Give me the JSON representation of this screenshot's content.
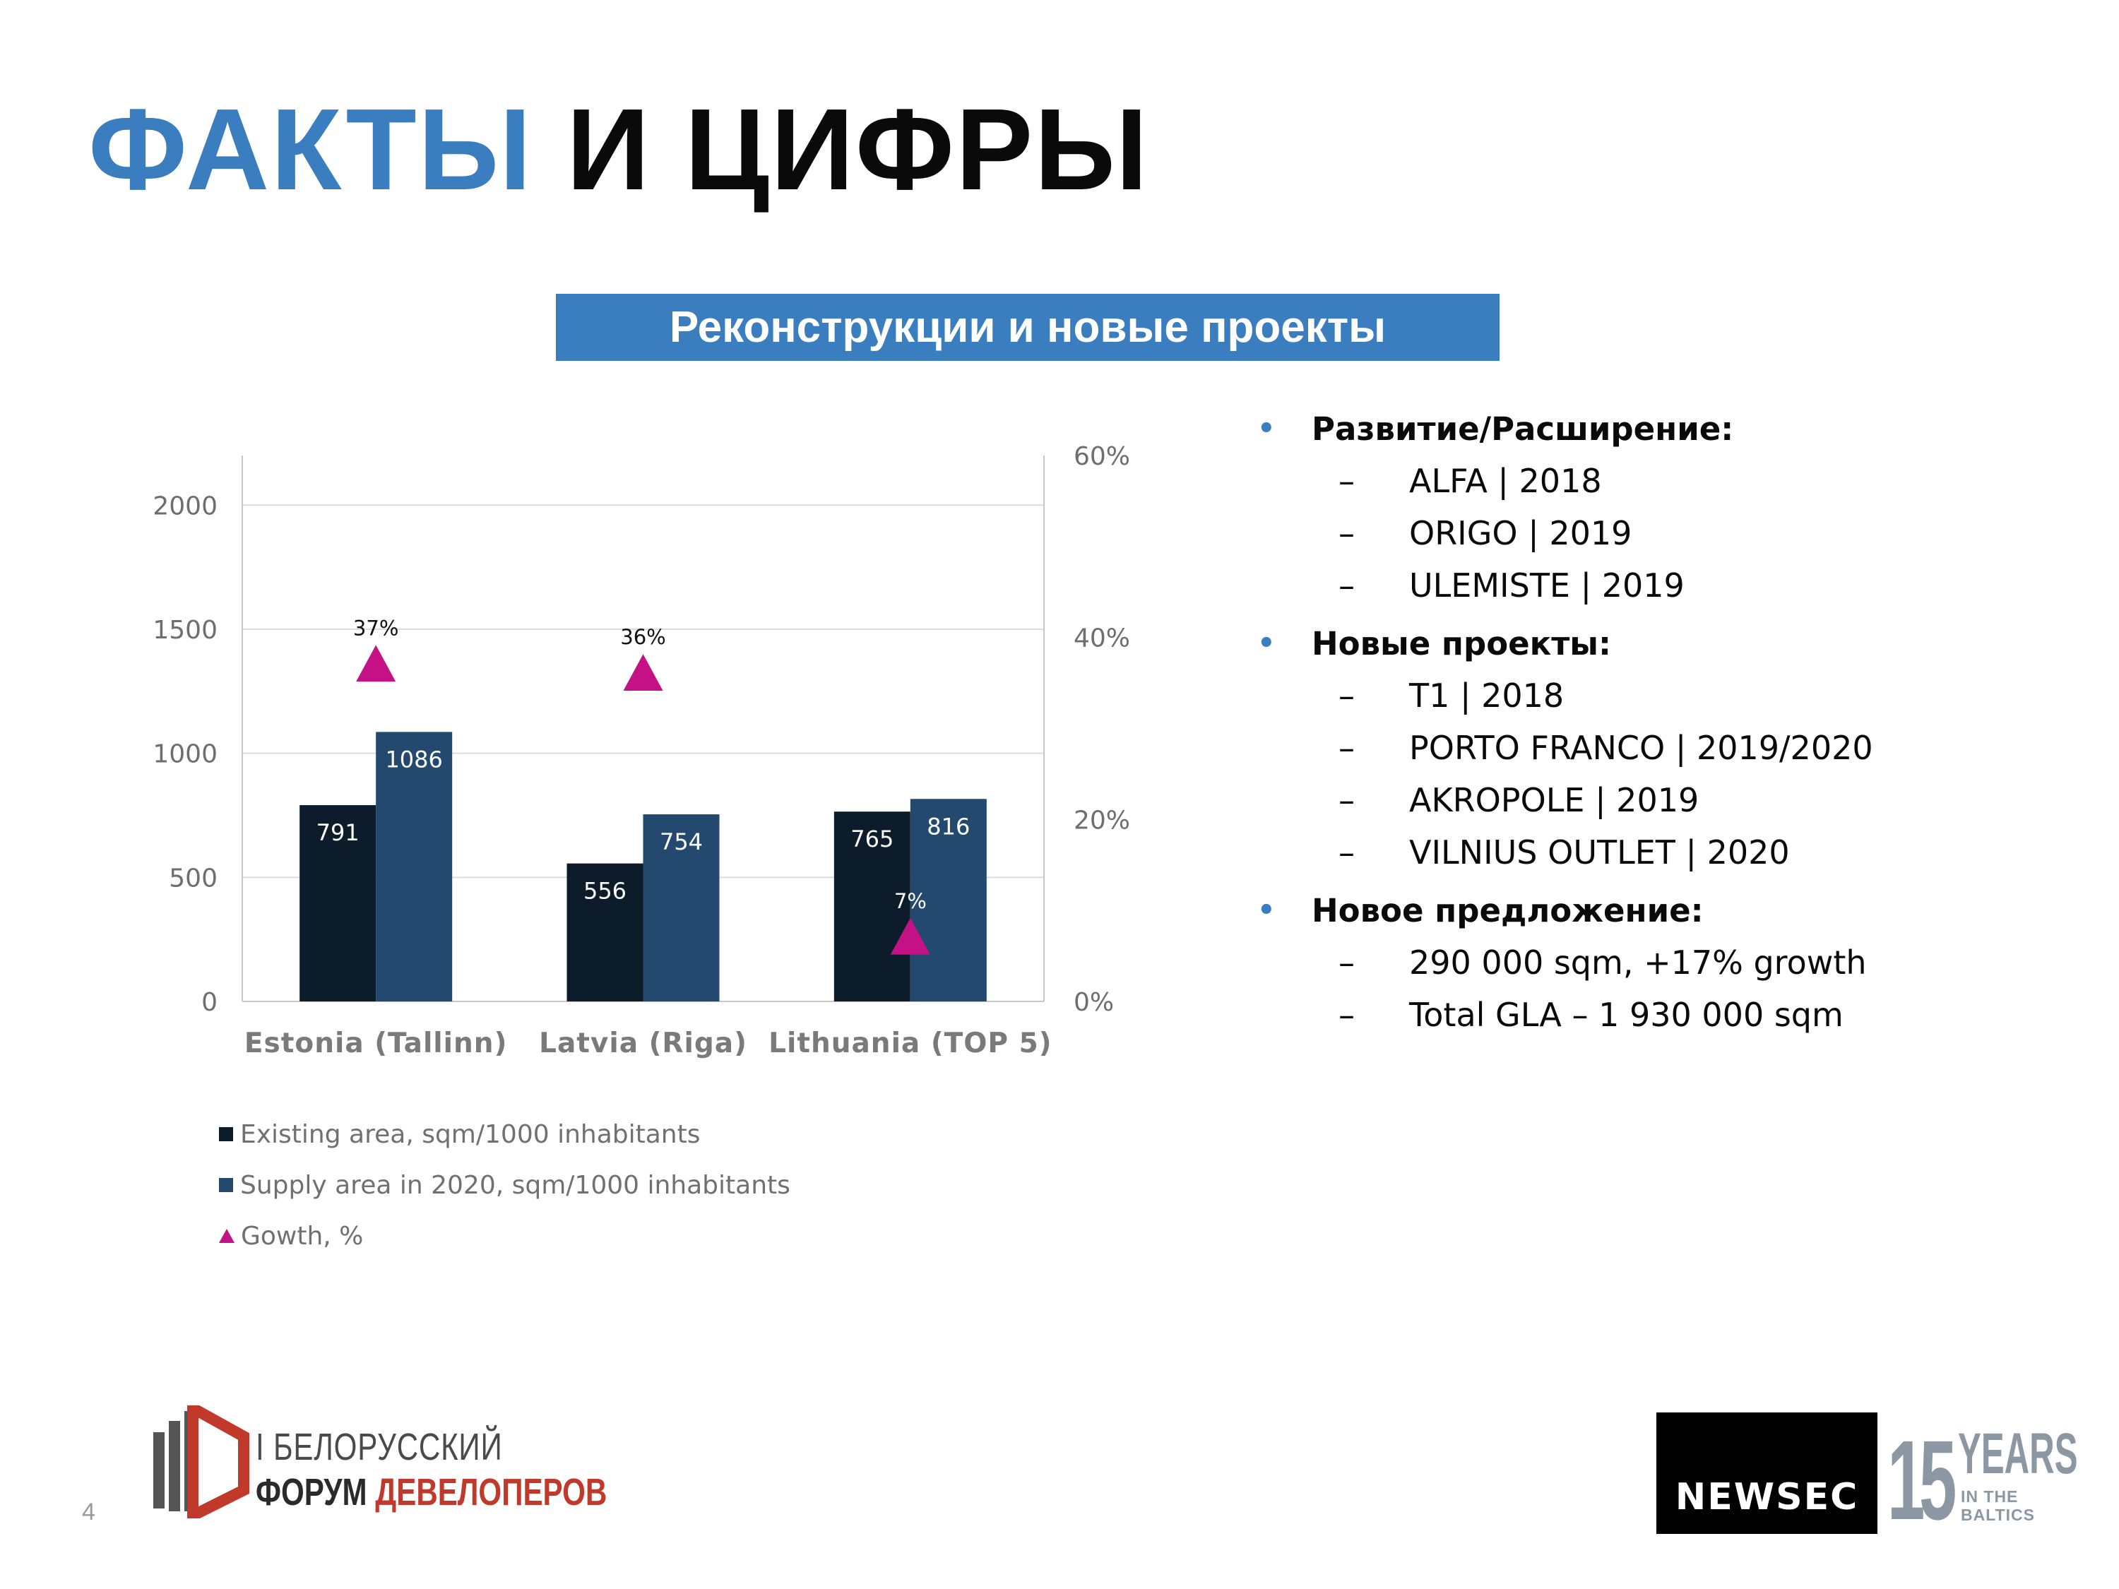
{
  "title": {
    "accent": "ФАКТЫ",
    "rest": "И ЦИФРЫ"
  },
  "banner": "Реконструкции и новые проекты",
  "chart_data": {
    "type": "bar",
    "categories": [
      "Estonia (Tallinn)",
      "Latvia (Riga)",
      "Lithuania (TOP 5)"
    ],
    "series": [
      {
        "name": "Existing area, sqm/1000 inhabitants",
        "type": "bar",
        "axis": "left",
        "color": "#0c1c2b",
        "values": [
          791,
          556,
          765
        ],
        "labels": [
          "791",
          "556",
          "765"
        ]
      },
      {
        "name": "Supply area in 2020, sqm/1000 inhabitants",
        "type": "bar",
        "axis": "left",
        "color": "#234a6e",
        "values": [
          1086,
          754,
          816
        ],
        "labels": [
          "1086",
          "754",
          "816"
        ]
      },
      {
        "name": "Gowth, %",
        "type": "scatter",
        "marker": "triangle",
        "axis": "right",
        "color": "#c41286",
        "values": [
          37,
          36,
          7
        ],
        "labels": [
          "37%",
          "36%",
          "7%"
        ]
      }
    ],
    "y_left": {
      "min": 0,
      "max": 2200,
      "ticks": [
        0,
        500,
        1000,
        1500,
        2000
      ],
      "tick_labels": [
        "0",
        "500",
        "1000",
        "1500",
        "2000"
      ]
    },
    "y_right": {
      "min": 0,
      "max": 60,
      "ticks": [
        0,
        20,
        40,
        60
      ],
      "tick_labels": [
        "0%",
        "20%",
        "40%",
        "60%"
      ]
    },
    "grid": true,
    "legend_position": "bottom-left"
  },
  "bullets": [
    {
      "heading": "Развитие/Расширение:",
      "items": [
        "ALFA | 2018",
        "ORIGO | 2019",
        "ULEMISTE | 2019"
      ]
    },
    {
      "heading": "Новые проекты:",
      "items": [
        "T1 | 2018",
        "PORTO FRANCO | 2019/2020",
        "AKROPOLE | 2019",
        "VILNIUS OUTLET | 2020"
      ]
    },
    {
      "heading": "Новое предложение:",
      "items": [
        "290 000 sqm, +17% growth",
        "Total GLA – 1 930 000 sqm"
      ]
    }
  ],
  "bullet_symbol": "•",
  "dash_symbol": "–",
  "page_number": "4",
  "forum_logo": {
    "line1": "I БЕЛОРУССКИЙ",
    "line2a": "ФОРУМ",
    "line2b": "ДЕВЕЛОПЕРОВ"
  },
  "newsec": "NEWSEC",
  "years": {
    "number": "15",
    "word": "YEARS",
    "sub1": "IN THE",
    "sub2": "BALTICS"
  },
  "colors": {
    "accent": "#3a7ebf",
    "bar_existing": "#0c1c2b",
    "bar_supply": "#234a6e",
    "growth": "#c41286",
    "forum_red": "#c0392b",
    "newsec_grey": "#8b98a4"
  },
  "icons": {
    "forum-mark": "forum-logo-icon"
  }
}
